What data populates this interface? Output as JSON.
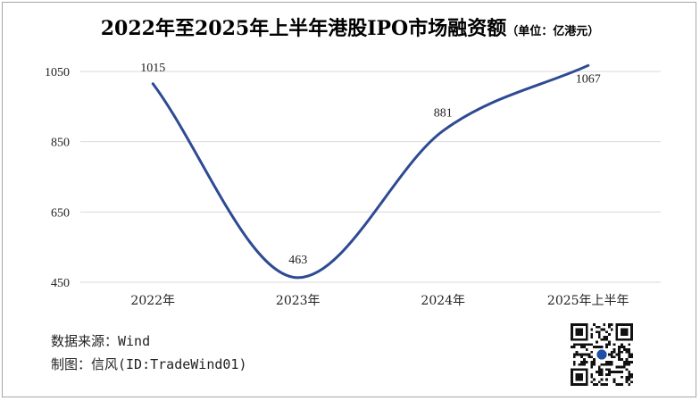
{
  "title": "2022年至2025年上半年港股IPO市场融资额",
  "unit": "（单位：亿港元）",
  "chart_data": {
    "type": "line",
    "title": "2022年至2025年上半年港股IPO市场融资额",
    "unit": "单位：亿港元",
    "categories": [
      "2022年",
      "2023年",
      "2024年",
      "2025年上半年"
    ],
    "series": [
      {
        "values": [
          1015,
          463,
          881,
          1067
        ]
      }
    ],
    "y_ticks": [
      450,
      650,
      850,
      1050
    ],
    "ylim": [
      450,
      1050
    ],
    "grid": true,
    "line_color": "#2e4a94",
    "smooth": true
  },
  "footer": {
    "source": "数据来源：Wind",
    "maker": "制图：信风(ID:TradeWind01)"
  },
  "colors": {
    "line": "#2e4a94",
    "grid": "#d9d9d9",
    "text": "#222222"
  },
  "icons": {
    "qr": "qr-code-icon"
  }
}
